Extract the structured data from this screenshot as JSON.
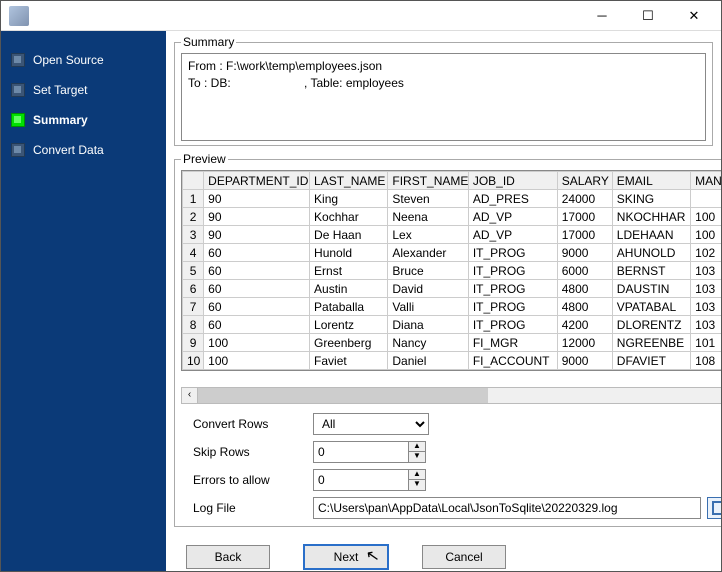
{
  "window": {
    "title": ""
  },
  "sidebar": {
    "items": [
      {
        "label": "Open Source",
        "active": false
      },
      {
        "label": "Set Target",
        "active": false
      },
      {
        "label": "Summary",
        "active": true
      },
      {
        "label": "Convert Data",
        "active": false
      }
    ]
  },
  "summary": {
    "legend": "Summary",
    "from": "From : F:\\work\\temp\\employees.json",
    "to": "To : DB:                      , Table: employees"
  },
  "preview": {
    "legend": "Preview",
    "columns": [
      "DEPARTMENT_ID",
      "LAST_NAME",
      "FIRST_NAME",
      "JOB_ID",
      "SALARY",
      "EMAIL",
      "MANAG"
    ],
    "rows": [
      [
        "90",
        "King",
        "Steven",
        "AD_PRES",
        "24000",
        "SKING",
        ""
      ],
      [
        "90",
        "Kochhar",
        "Neena",
        "AD_VP",
        "17000",
        "NKOCHHAR",
        "100"
      ],
      [
        "90",
        "De Haan",
        "Lex",
        "AD_VP",
        "17000",
        "LDEHAAN",
        "100"
      ],
      [
        "60",
        "Hunold",
        "Alexander",
        "IT_PROG",
        "9000",
        "AHUNOLD",
        "102"
      ],
      [
        "60",
        "Ernst",
        "Bruce",
        "IT_PROG",
        "6000",
        "BERNST",
        "103"
      ],
      [
        "60",
        "Austin",
        "David",
        "IT_PROG",
        "4800",
        "DAUSTIN",
        "103"
      ],
      [
        "60",
        "Pataballa",
        "Valli",
        "IT_PROG",
        "4800",
        "VPATABAL",
        "103"
      ],
      [
        "60",
        "Lorentz",
        "Diana",
        "IT_PROG",
        "4200",
        "DLORENTZ",
        "103"
      ],
      [
        "100",
        "Greenberg",
        "Nancy",
        "FI_MGR",
        "12000",
        "NGREENBE",
        "101"
      ],
      [
        "100",
        "Faviet",
        "Daniel",
        "FI_ACCOUNT",
        "9000",
        "DFAVIET",
        "108"
      ]
    ]
  },
  "form": {
    "convert_rows": {
      "label": "Convert Rows",
      "value": "All"
    },
    "skip_rows": {
      "label": "Skip Rows",
      "value": "0"
    },
    "errors_allow": {
      "label": "Errors to allow",
      "value": "0"
    },
    "log_file": {
      "label": "Log File",
      "value": "C:\\Users\\pan\\AppData\\Local\\JsonToSqlite\\20220329.log"
    }
  },
  "buttons": {
    "back": "Back",
    "next": "Next",
    "cancel": "Cancel"
  },
  "colors": {
    "sidebar_bg": "#0b3a78",
    "active_box": "#00e000",
    "border": "#888888",
    "header_bg": "#f0f0f0"
  }
}
